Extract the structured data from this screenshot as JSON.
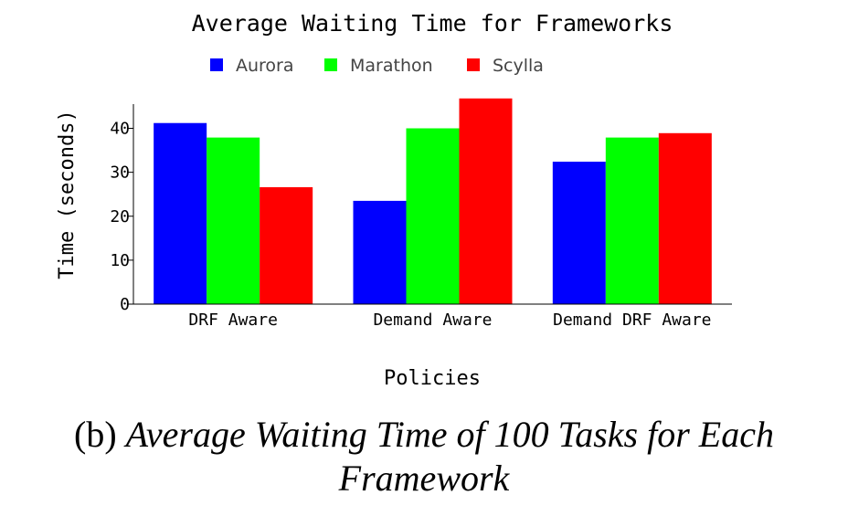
{
  "chart_data": {
    "type": "bar",
    "title": "Average Waiting Time for Frameworks",
    "xlabel": "Policies",
    "ylabel": "Time (seconds)",
    "categories": [
      "DRF Aware",
      "Demand Aware",
      "Demand DRF Aware"
    ],
    "series": [
      {
        "name": "Aurora",
        "color": "#0000ff",
        "values": [
          41.2,
          23.5,
          32.4
        ]
      },
      {
        "name": "Marathon",
        "color": "#00ff00",
        "values": [
          37.9,
          40.0,
          37.9
        ]
      },
      {
        "name": "Scylla",
        "color": "#ff0000",
        "values": [
          26.6,
          46.8,
          38.9
        ]
      }
    ],
    "ylim": [
      0,
      48
    ],
    "yticks": [
      0,
      10,
      20,
      30,
      40
    ],
    "legend_position": "top",
    "grid": false
  },
  "caption": {
    "label": "(b)",
    "text": "Average Waiting Time of 100 Tasks for Each Framework"
  }
}
